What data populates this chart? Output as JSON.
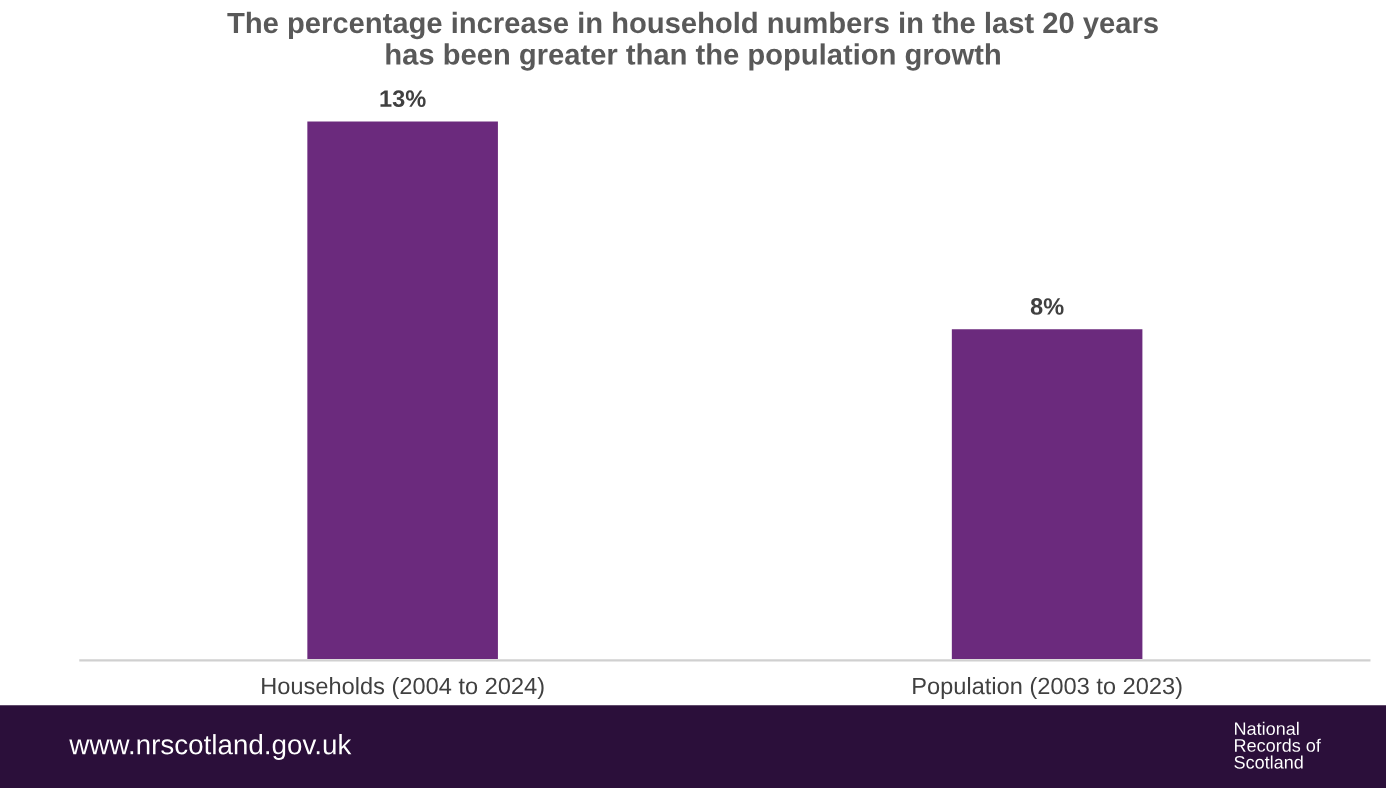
{
  "chart_data": {
    "type": "bar",
    "title": "The percentage increase in household numbers in the last 20 years\nhas been greater than the population growth",
    "categories": [
      "Households (2004 to 2024)",
      "Population (2003 to 2023)"
    ],
    "values": [
      13,
      8
    ],
    "color": "#6b2a7d",
    "data_labels": true,
    "value_labels": [
      "13%",
      "8%"
    ],
    "grid": false,
    "legend": false,
    "annotations": [
      "www.nrscotland.gov.uk",
      "National\nRecords of\nScotland"
    ]
  }
}
